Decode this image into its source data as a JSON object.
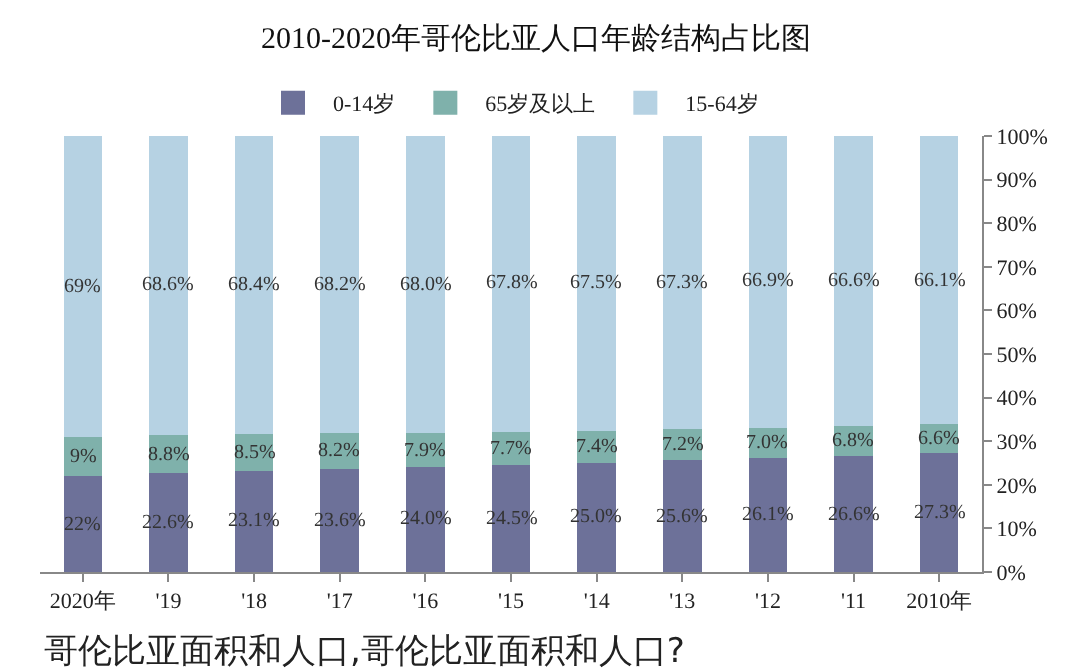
{
  "chart_data": {
    "type": "bar",
    "stacked": true,
    "title": "2010-2020年哥伦比亚人口年龄结构占比图",
    "categories": [
      "2020年",
      "'19",
      "'18",
      "'17",
      "'16",
      "'15",
      "'14",
      "'13",
      "'12",
      "'11",
      "2010年"
    ],
    "series": [
      {
        "name": "0-14岁",
        "color": "#6d7199",
        "values": [
          22,
          22.6,
          23.1,
          23.6,
          24.0,
          24.5,
          25.0,
          25.6,
          26.1,
          26.6,
          27.3
        ],
        "value_labels": [
          "22%",
          "22.6%",
          "23.1%",
          "23.6%",
          "24.0%",
          "24.5%",
          "25.0%",
          "25.6%",
          "26.1%",
          "26.6%",
          "27.3%"
        ]
      },
      {
        "name": "65岁及以上",
        "color": "#7fb1ab",
        "values": [
          9,
          8.8,
          8.5,
          8.2,
          7.9,
          7.7,
          7.4,
          7.2,
          7.0,
          6.8,
          6.6
        ],
        "value_labels": [
          "9%",
          "8.8%",
          "8.5%",
          "8.2%",
          "7.9%",
          "7.7%",
          "7.4%",
          "7.2%",
          "7.0%",
          "6.8%",
          "6.6%"
        ]
      },
      {
        "name": "15-64岁",
        "color": "#b6d2e3",
        "values": [
          69,
          68.6,
          68.4,
          68.2,
          68.0,
          67.8,
          67.5,
          67.3,
          66.9,
          66.6,
          66.1
        ],
        "value_labels": [
          "69%",
          "68.6%",
          "68.4%",
          "68.2%",
          "68.0%",
          "67.8%",
          "67.5%",
          "67.3%",
          "66.9%",
          "66.6%",
          "66.1%"
        ]
      }
    ],
    "ylim": [
      0,
      100
    ],
    "yticks": [
      {
        "value": 0,
        "label": "0%"
      },
      {
        "value": 10,
        "label": "10%"
      },
      {
        "value": 20,
        "label": "20%"
      },
      {
        "value": 30,
        "label": "30%"
      },
      {
        "value": 40,
        "label": "40%"
      },
      {
        "value": 50,
        "label": "50%"
      },
      {
        "value": 60,
        "label": "60%"
      },
      {
        "value": 70,
        "label": "70%"
      },
      {
        "value": 80,
        "label": "80%"
      },
      {
        "value": 90,
        "label": "90%"
      },
      {
        "value": 100,
        "label": "100%"
      }
    ],
    "grid": false,
    "legend": "top",
    "annotations": [
      "哥伦比亚面积和人口,哥伦比亚面积和人口?"
    ]
  }
}
